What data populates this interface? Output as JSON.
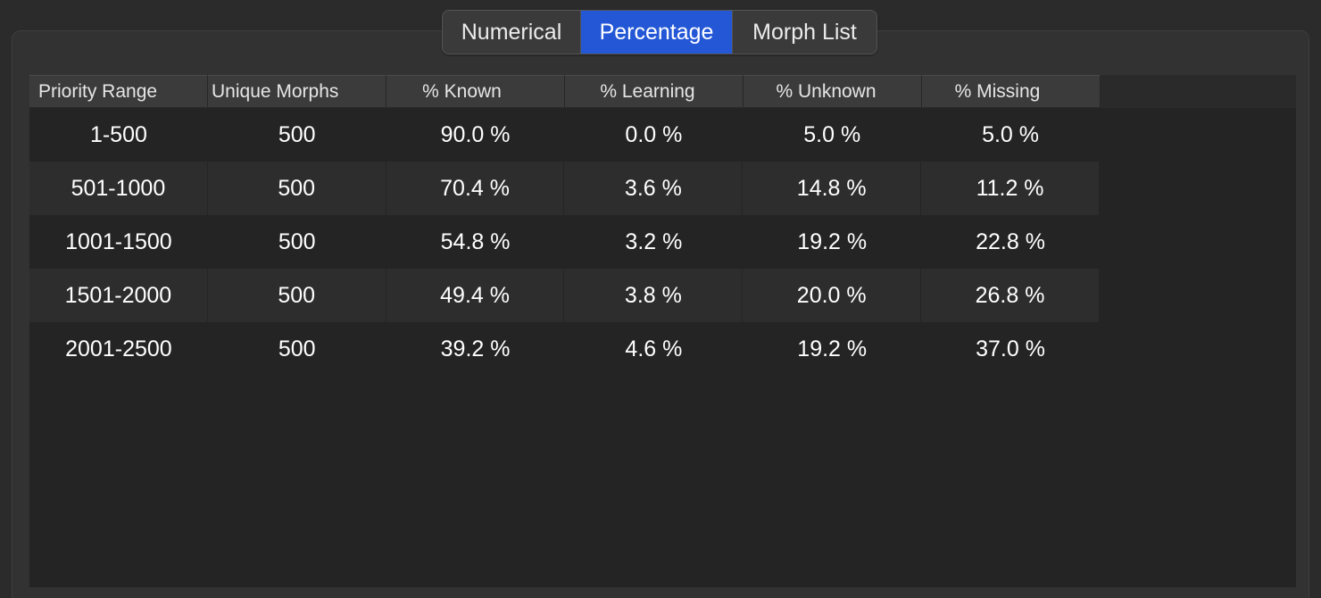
{
  "tabs": [
    {
      "label": "Numerical",
      "active": false
    },
    {
      "label": "Percentage",
      "active": true
    },
    {
      "label": "Morph List",
      "active": false
    }
  ],
  "accent_color": "#2357d6",
  "table": {
    "headers": [
      "Priority Range",
      "Unique Morphs",
      "% Known",
      "% Learning",
      "% Unknown",
      "% Missing"
    ],
    "rows": [
      [
        "1-500",
        "500",
        "90.0 %",
        "0.0 %",
        "5.0 %",
        "5.0 %"
      ],
      [
        "501-1000",
        "500",
        "70.4 %",
        "3.6 %",
        "14.8 %",
        "11.2 %"
      ],
      [
        "1001-1500",
        "500",
        "54.8 %",
        "3.2 %",
        "19.2 %",
        "22.8 %"
      ],
      [
        "1501-2000",
        "500",
        "49.4 %",
        "3.8 %",
        "20.0 %",
        "26.8 %"
      ],
      [
        "2001-2500",
        "500",
        "39.2 %",
        "4.6 %",
        "19.2 %",
        "37.0 %"
      ]
    ]
  }
}
